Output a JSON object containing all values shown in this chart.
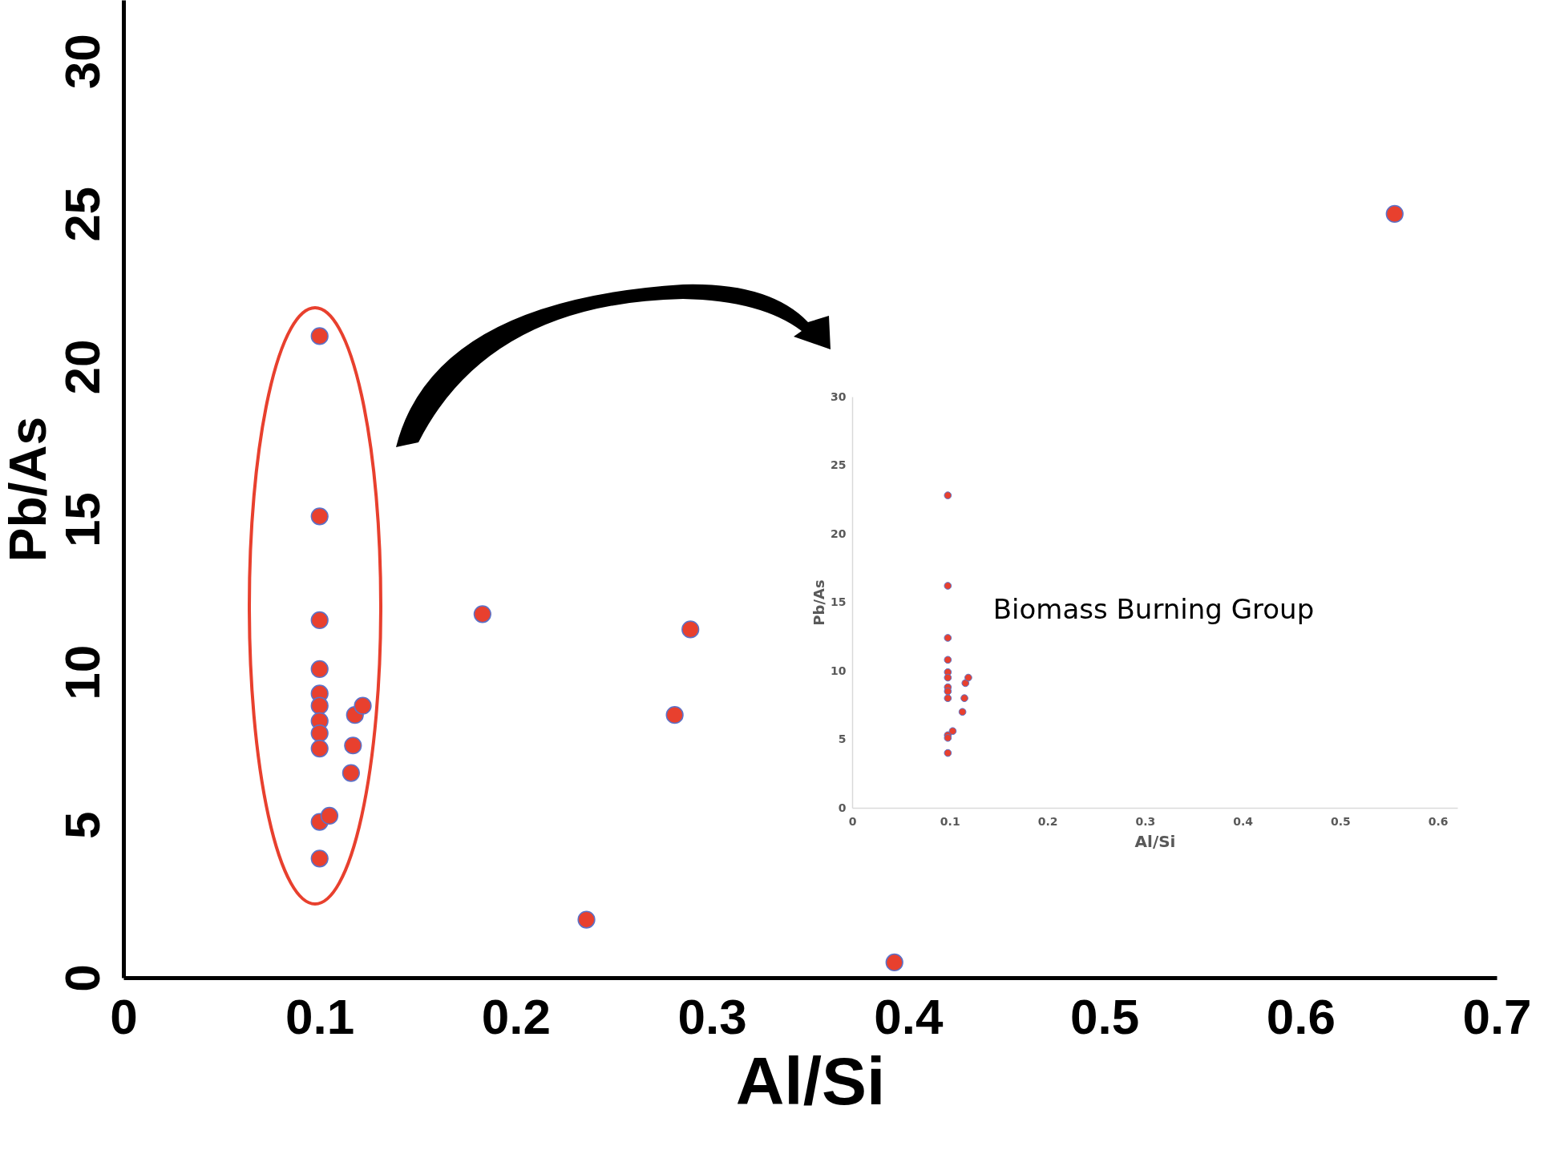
{
  "chart_data": [
    {
      "type": "scatter",
      "xlabel": "Al/Si",
      "ylabel": "Pb/As",
      "color": "#e8402e",
      "marker": "circle",
      "grid": false,
      "x": [
        0.1,
        0.1,
        0.1,
        0.1,
        0.1,
        0.1,
        0.1,
        0.1,
        0.1,
        0.1,
        0.105,
        0.1,
        0.116,
        0.117,
        0.118,
        0.122,
        0.183,
        0.236,
        0.281,
        0.289,
        0.393,
        0.648
      ],
      "values": [
        21.0,
        15.1,
        11.7,
        10.1,
        9.3,
        8.9,
        8.4,
        8.0,
        7.5,
        5.1,
        5.3,
        3.9,
        6.7,
        7.6,
        8.6,
        8.9,
        11.9,
        1.9,
        8.6,
        11.4,
        0.5,
        25.0
      ],
      "xlim": [
        0,
        0.7
      ],
      "xticks": [
        0,
        0.1,
        0.2,
        0.3,
        0.4,
        0.5,
        0.6,
        0.7
      ],
      "ylim": [
        0,
        32
      ],
      "yticks": [
        0,
        5,
        10,
        15,
        20,
        25,
        30
      ]
    },
    {
      "type": "scatter",
      "xlabel": "Al/Si",
      "ylabel": "Pb/As",
      "color": "#e8402e",
      "marker": "circle",
      "grid": false,
      "annotations": [
        "Biomass Burning Group"
      ],
      "x": [
        0.098,
        0.098,
        0.098,
        0.098,
        0.098,
        0.098,
        0.098,
        0.098,
        0.098,
        0.098,
        0.098,
        0.103,
        0.098,
        0.113,
        0.115,
        0.116,
        0.119
      ],
      "values": [
        22.8,
        16.2,
        12.4,
        10.8,
        9.9,
        9.5,
        8.8,
        8.5,
        8.0,
        5.3,
        5.1,
        5.6,
        4.0,
        7.0,
        8.0,
        9.1,
        9.5
      ],
      "xlim": [
        0,
        0.62
      ],
      "xticks": [
        0,
        0.1,
        0.2,
        0.3,
        0.4,
        0.5,
        0.6
      ],
      "ylim": [
        0,
        30
      ],
      "yticks": [
        0,
        5,
        10,
        15,
        20,
        25,
        30
      ]
    }
  ]
}
